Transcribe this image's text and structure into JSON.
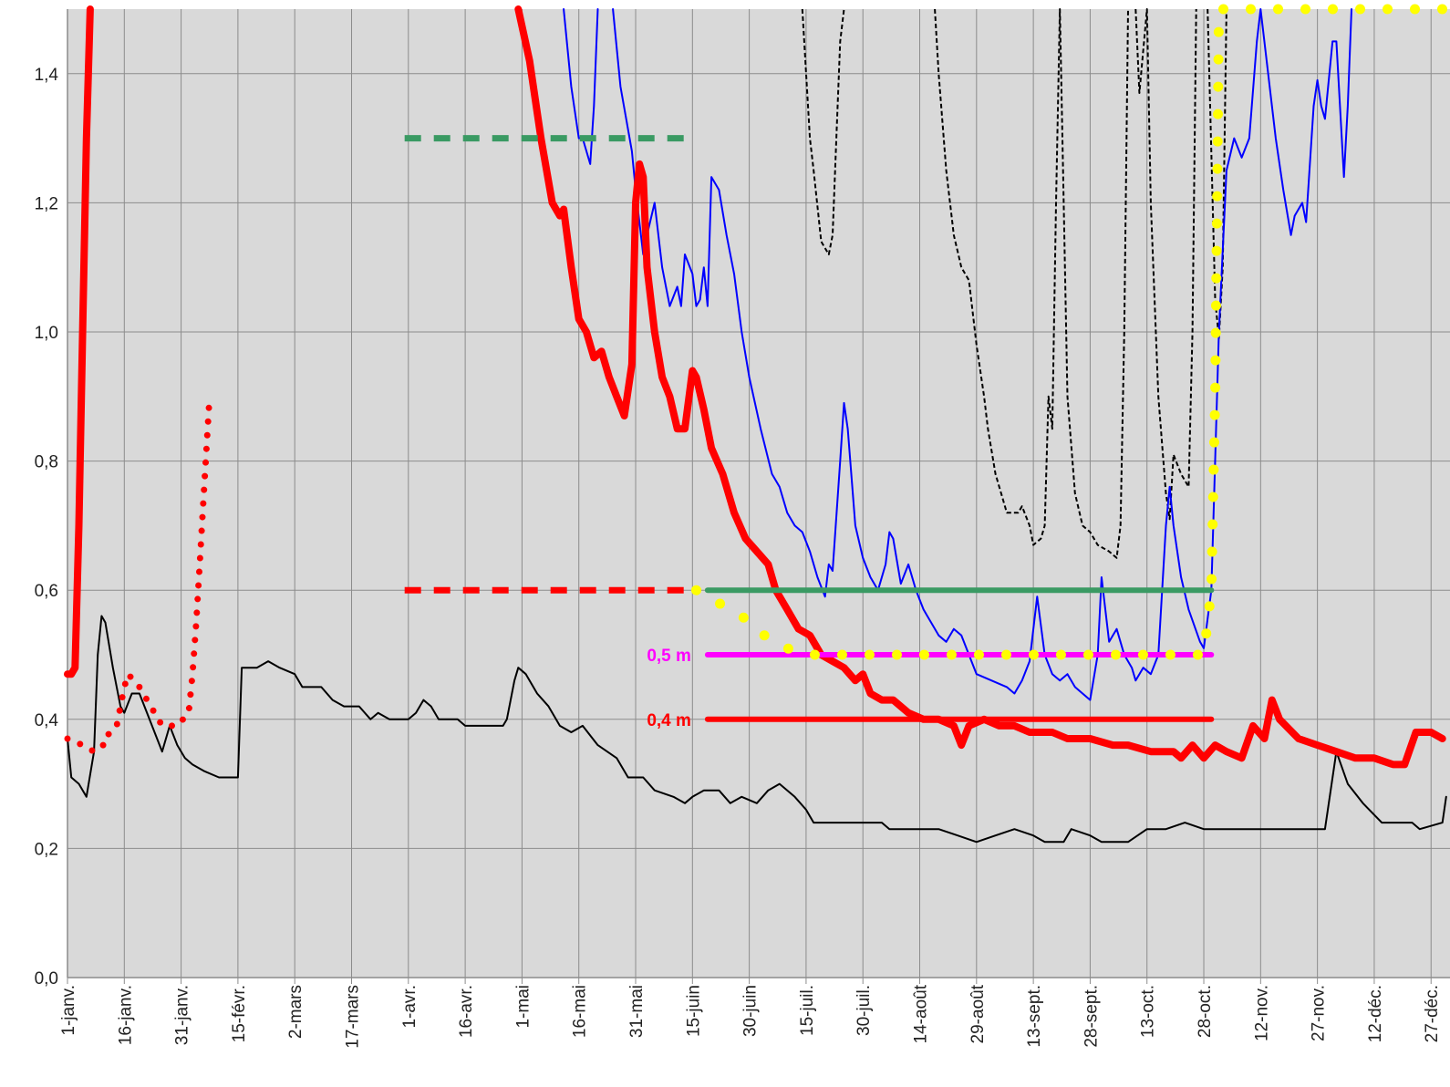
{
  "chart_data": {
    "type": "line",
    "xlim": [
      0,
      365
    ],
    "xticks": [
      {
        "value": 0,
        "label": "1-janv."
      },
      {
        "value": 15,
        "label": "16-janv."
      },
      {
        "value": 30,
        "label": "31-janv."
      },
      {
        "value": 45,
        "label": "15-févr."
      },
      {
        "value": 60,
        "label": "2-mars"
      },
      {
        "value": 75,
        "label": "17-mars"
      },
      {
        "value": 90,
        "label": "1-avr."
      },
      {
        "value": 105,
        "label": "16-avr."
      },
      {
        "value": 120,
        "label": "1-mai"
      },
      {
        "value": 135,
        "label": "16-mai"
      },
      {
        "value": 150,
        "label": "31-mai"
      },
      {
        "value": 165,
        "label": "15-juin"
      },
      {
        "value": 180,
        "label": "30-juin"
      },
      {
        "value": 195,
        "label": "15-juil."
      },
      {
        "value": 210,
        "label": "30-juil."
      },
      {
        "value": 225,
        "label": "14-août"
      },
      {
        "value": 240,
        "label": "29-août"
      },
      {
        "value": 255,
        "label": "13-sept."
      },
      {
        "value": 270,
        "label": "28-sept."
      },
      {
        "value": 285,
        "label": "13-oct."
      },
      {
        "value": 300,
        "label": "28-oct."
      },
      {
        "value": 315,
        "label": "12-nov."
      },
      {
        "value": 330,
        "label": "27-nov."
      },
      {
        "value": 345,
        "label": "12-déc."
      },
      {
        "value": 360,
        "label": "27-déc."
      }
    ],
    "ylim": [
      0,
      1.5
    ],
    "yticks": [
      {
        "value": 0,
        "label": "0,0"
      },
      {
        "value": 0.2,
        "label": "0,2"
      },
      {
        "value": 0.4,
        "label": "0,4"
      },
      {
        "value": 0.6,
        "label": "0,6"
      },
      {
        "value": 0.8,
        "label": "0,8"
      },
      {
        "value": 1.0,
        "label": "1,0"
      },
      {
        "value": 1.2,
        "label": "1,2"
      },
      {
        "value": 1.4,
        "label": "1,4"
      }
    ],
    "grid": true,
    "series": [
      {
        "color": "#000000",
        "style": "thin",
        "x": [
          0,
          1,
          3,
          5,
          7,
          8,
          9,
          10,
          12,
          14,
          15,
          17,
          19,
          21,
          23,
          25,
          27,
          29,
          31,
          33,
          36,
          40,
          45,
          46,
          50,
          53,
          56,
          60,
          62,
          67,
          70,
          73,
          77,
          80,
          82,
          85,
          90,
          92,
          94,
          96,
          98,
          103,
          105,
          110,
          115,
          116,
          118,
          119,
          121,
          124,
          127,
          130,
          133,
          136,
          140,
          145,
          148,
          152,
          155,
          160,
          163,
          165,
          168,
          172,
          175,
          178,
          182,
          185,
          188,
          192,
          195,
          197,
          200,
          210,
          215,
          217,
          230,
          235,
          240,
          245,
          250,
          255,
          258,
          263,
          265,
          270,
          273,
          280,
          285,
          290,
          295,
          300,
          320,
          332,
          335,
          338,
          342,
          347,
          355,
          357,
          363,
          364
        ],
        "values": [
          0.37,
          0.31,
          0.3,
          0.28,
          0.35,
          0.5,
          0.56,
          0.55,
          0.48,
          0.42,
          0.41,
          0.44,
          0.44,
          0.41,
          0.38,
          0.35,
          0.39,
          0.36,
          0.34,
          0.33,
          0.32,
          0.31,
          0.31,
          0.48,
          0.48,
          0.49,
          0.48,
          0.47,
          0.45,
          0.45,
          0.43,
          0.42,
          0.42,
          0.4,
          0.41,
          0.4,
          0.4,
          0.41,
          0.43,
          0.42,
          0.4,
          0.4,
          0.39,
          0.39,
          0.39,
          0.4,
          0.46,
          0.48,
          0.47,
          0.44,
          0.42,
          0.39,
          0.38,
          0.39,
          0.36,
          0.34,
          0.31,
          0.31,
          0.29,
          0.28,
          0.27,
          0.28,
          0.29,
          0.29,
          0.27,
          0.28,
          0.27,
          0.29,
          0.3,
          0.28,
          0.26,
          0.24,
          0.24,
          0.24,
          0.24,
          0.23,
          0.23,
          0.22,
          0.21,
          0.22,
          0.23,
          0.22,
          0.21,
          0.21,
          0.23,
          0.22,
          0.21,
          0.21,
          0.23,
          0.23,
          0.24,
          0.23,
          0.23,
          0.23,
          0.35,
          0.3,
          0.27,
          0.24,
          0.24,
          0.23,
          0.24,
          0.28
        ]
      },
      {
        "color": "#000000",
        "style": "dashed",
        "x": [
          194,
          196,
          197,
          199,
          201,
          202,
          203,
          204,
          205,
          null,
          229,
          230,
          232,
          234,
          236,
          238,
          240,
          242,
          243,
          245,
          247,
          248,
          251,
          252,
          254,
          255,
          257,
          258,
          259,
          260,
          261,
          262,
          263,
          264,
          266,
          268,
          270,
          272,
          275,
          277,
          278,
          279,
          280,
          null,
          282,
          283,
          285,
          286,
          288,
          290,
          291,
          292,
          294,
          296,
          297,
          298,
          null,
          301,
          303,
          304,
          305,
          306
        ],
        "values": [
          1.5,
          1.3,
          1.25,
          1.14,
          1.12,
          1.15,
          1.3,
          1.45,
          1.5,
          null,
          1.5,
          1.4,
          1.25,
          1.15,
          1.1,
          1.08,
          0.98,
          0.9,
          0.85,
          0.78,
          0.74,
          0.72,
          0.72,
          0.73,
          0.7,
          0.67,
          0.68,
          0.7,
          0.9,
          0.85,
          1.2,
          1.5,
          1.2,
          0.9,
          0.75,
          0.7,
          0.69,
          0.67,
          0.66,
          0.65,
          0.7,
          1.0,
          1.5,
          null,
          1.5,
          1.37,
          1.5,
          1.2,
          0.9,
          0.75,
          0.71,
          0.81,
          0.78,
          0.76,
          1.0,
          1.5,
          null,
          1.5,
          1.05,
          0.99,
          1.1,
          1.5
        ]
      },
      {
        "color": "#0000ff",
        "style": "thin",
        "x": [
          131,
          133,
          135,
          136,
          138,
          139,
          140,
          null,
          144,
          146,
          149,
          150,
          152,
          153,
          155,
          157,
          159,
          161,
          162,
          163,
          165,
          166,
          167,
          168,
          169,
          170,
          172,
          174,
          176,
          178,
          180,
          183,
          186,
          188,
          190,
          192,
          194,
          196,
          198,
          200,
          201,
          202,
          204,
          205,
          206,
          208,
          210,
          212,
          214,
          216,
          217,
          218,
          220,
          222,
          224,
          226,
          230,
          232,
          234,
          236,
          238,
          240,
          244,
          248,
          250,
          252,
          254,
          256,
          258,
          260,
          262,
          264,
          266,
          268,
          270,
          272,
          273,
          275,
          277,
          279,
          281,
          282,
          284,
          286,
          288,
          290,
          291,
          292,
          294,
          296,
          299,
          300,
          302,
          304,
          306,
          308,
          310,
          312,
          314,
          315,
          317,
          319,
          321,
          323,
          324,
          326,
          327,
          329,
          330,
          331,
          332,
          334,
          335,
          337,
          338,
          339
        ],
        "values": [
          1.5,
          1.38,
          1.3,
          1.3,
          1.26,
          1.35,
          1.5,
          null,
          1.5,
          1.38,
          1.28,
          1.22,
          1.12,
          1.15,
          1.2,
          1.1,
          1.04,
          1.07,
          1.04,
          1.12,
          1.09,
          1.04,
          1.05,
          1.1,
          1.04,
          1.24,
          1.22,
          1.15,
          1.09,
          1.0,
          0.93,
          0.85,
          0.78,
          0.76,
          0.72,
          0.7,
          0.69,
          0.66,
          0.62,
          0.59,
          0.64,
          0.63,
          0.8,
          0.89,
          0.85,
          0.7,
          0.65,
          0.62,
          0.6,
          0.64,
          0.69,
          0.68,
          0.61,
          0.64,
          0.6,
          0.57,
          0.53,
          0.52,
          0.54,
          0.53,
          0.5,
          0.47,
          0.46,
          0.45,
          0.44,
          0.46,
          0.49,
          0.59,
          0.5,
          0.47,
          0.46,
          0.47,
          0.45,
          0.44,
          0.43,
          0.5,
          0.62,
          0.52,
          0.54,
          0.5,
          0.48,
          0.46,
          0.48,
          0.47,
          0.5,
          0.7,
          0.76,
          0.7,
          0.62,
          0.57,
          0.52,
          0.51,
          0.6,
          1.0,
          1.25,
          1.3,
          1.27,
          1.3,
          1.45,
          1.5,
          1.4,
          1.3,
          1.22,
          1.15,
          1.18,
          1.2,
          1.17,
          1.35,
          1.39,
          1.35,
          1.33,
          1.45,
          1.45,
          1.24,
          1.35,
          1.5
        ]
      },
      {
        "color": "#ff0000",
        "style": "thick",
        "x": [
          0,
          1,
          2,
          3,
          4,
          5,
          6,
          null,
          119,
          122,
          125,
          128,
          130,
          131,
          133,
          135,
          137,
          139,
          141,
          143,
          145,
          147,
          149,
          150,
          151,
          152,
          153,
          155,
          157,
          159,
          161,
          163,
          165,
          166,
          168,
          170,
          173,
          176,
          179,
          182,
          185,
          187,
          190,
          193,
          196,
          199,
          202,
          205,
          208,
          210,
          212,
          215,
          218,
          222,
          226,
          230,
          234,
          236,
          238,
          242,
          246,
          250,
          254,
          260,
          264,
          270,
          276,
          280,
          286,
          292,
          294,
          297,
          300,
          303,
          306,
          310,
          313,
          316,
          318,
          320,
          325,
          330,
          335,
          340,
          345,
          350,
          353,
          356,
          360,
          363
        ],
        "values": [
          0.47,
          0.47,
          0.48,
          0.7,
          1.0,
          1.3,
          1.5,
          null,
          1.5,
          1.42,
          1.3,
          1.2,
          1.18,
          1.19,
          1.1,
          1.02,
          1.0,
          0.96,
          0.97,
          0.93,
          0.9,
          0.87,
          0.95,
          1.2,
          1.26,
          1.24,
          1.1,
          1.0,
          0.93,
          0.9,
          0.85,
          0.85,
          0.94,
          0.93,
          0.88,
          0.82,
          0.78,
          0.72,
          0.68,
          0.66,
          0.64,
          0.6,
          0.57,
          0.54,
          0.53,
          0.5,
          0.49,
          0.48,
          0.46,
          0.47,
          0.44,
          0.43,
          0.43,
          0.41,
          0.4,
          0.4,
          0.39,
          0.36,
          0.39,
          0.4,
          0.39,
          0.39,
          0.38,
          0.38,
          0.37,
          0.37,
          0.36,
          0.36,
          0.35,
          0.35,
          0.34,
          0.36,
          0.34,
          0.36,
          0.35,
          0.34,
          0.39,
          0.37,
          0.43,
          0.4,
          0.37,
          0.36,
          0.35,
          0.34,
          0.34,
          0.33,
          0.33,
          0.38,
          0.38,
          0.37
        ]
      },
      {
        "color": "#ff0000",
        "style": "dotted",
        "x": [
          0,
          4,
          7,
          9,
          10,
          11,
          13,
          14,
          15,
          16,
          19,
          21,
          23,
          25,
          27,
          29,
          32,
          33,
          34,
          35,
          36,
          37,
          37.5
        ],
        "values": [
          0.37,
          0.36,
          0.35,
          0.36,
          0.36,
          0.38,
          0.39,
          0.42,
          0.45,
          0.47,
          0.45,
          0.43,
          0.41,
          0.39,
          0.39,
          0.39,
          0.41,
          0.47,
          0.55,
          0.65,
          0.75,
          0.85,
          0.9
        ]
      },
      {
        "color": "#3a9a63",
        "style": "dashed",
        "x": [
          89,
          166
        ],
        "values": [
          1.3,
          1.3
        ]
      },
      {
        "color": "#ff0000",
        "style": "dashed",
        "x": [
          89,
          166
        ],
        "values": [
          0.6,
          0.6
        ]
      },
      {
        "color": "#3a9a63",
        "style": "solid",
        "x": [
          169,
          302
        ],
        "values": [
          0.6,
          0.6
        ]
      },
      {
        "color": "#ff00ff",
        "style": "solid",
        "label": "0,5 m",
        "x": [
          169,
          302
        ],
        "values": [
          0.5,
          0.5
        ]
      },
      {
        "color": "#ff0000",
        "style": "solid",
        "label": "0,4 m",
        "x": [
          169,
          302
        ],
        "values": [
          0.4,
          0.4
        ]
      },
      {
        "color": "#ffff00",
        "style": "bigdotted",
        "x": [
          166,
          172,
          178,
          184,
          190,
          196,
          300,
          302,
          303,
          303.5,
          304,
          306,
          363
        ],
        "values": [
          0.6,
          0.58,
          0.56,
          0.53,
          0.51,
          0.5,
          0.5,
          0.6,
          0.9,
          1.2,
          1.5,
          1.5,
          1.5
        ]
      }
    ]
  }
}
